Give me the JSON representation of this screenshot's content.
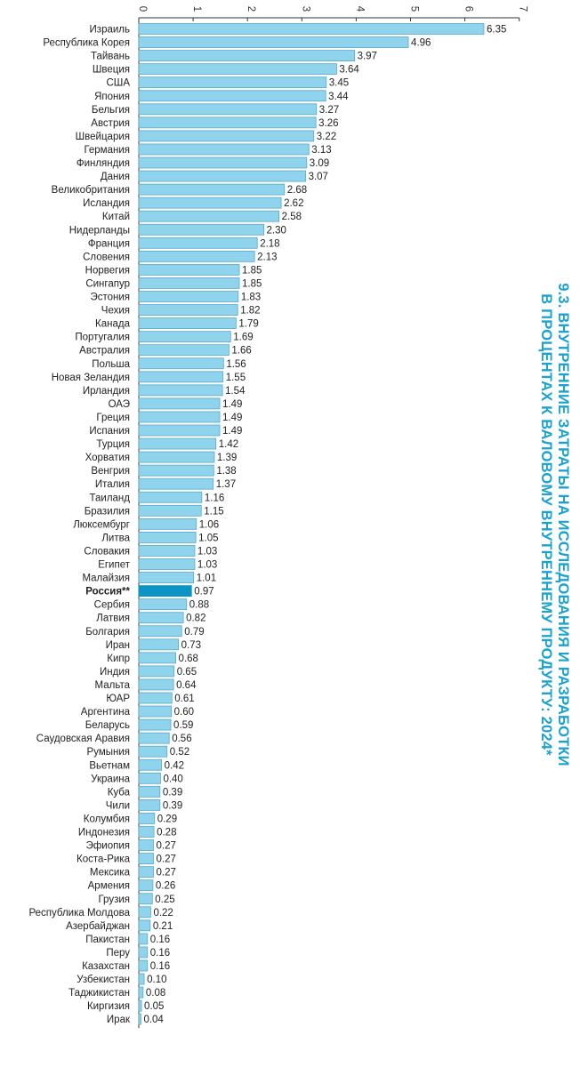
{
  "title": [
    "9.3. ВНУТРЕННИЕ ЗАТРАТЫ НА ИССЛЕДОВАНИЯ И РАЗРАБОТКИ",
    "В ПРОЦЕНТАХ К ВАЛОВОМУ ВНУТРЕННЕМУ ПРОДУКТУ: 2024*"
  ],
  "colors": {
    "bar": "#8fd3ec",
    "bar_stroke": "#5aa9c9",
    "highlight": "#0d94c6",
    "title": "#1aa3cf",
    "axis": "#333333"
  },
  "chart_data": {
    "type": "bar",
    "orientation": "horizontal",
    "title": "9.3. ВНУТРЕННИЕ ЗАТРАТЫ НА ИССЛЕДОВАНИЯ И РАЗРАБОТКИ В ПРОЦЕНТАХ К ВАЛОВОМУ ВНУТРЕННЕМУ ПРОДУКТУ: 2024*",
    "xlim": [
      0,
      7
    ],
    "xticks": [
      0,
      1,
      2,
      3,
      4,
      5,
      6,
      7
    ],
    "xaxis_position": "top",
    "grid": false,
    "highlight": "Россия**",
    "categories": [
      "Израиль",
      "Республика Корея",
      "Тайвань",
      "Швеция",
      "США",
      "Япония",
      "Бельгия",
      "Австрия",
      "Швейцария",
      "Германия",
      "Финляндия",
      "Дания",
      "Великобритания",
      "Исландия",
      "Китай",
      "Нидерланды",
      "Франция",
      "Словения",
      "Норвегия",
      "Сингапур",
      "Эстония",
      "Чехия",
      "Канада",
      "Португалия",
      "Австралия",
      "Польша",
      "Новая Зеландия",
      "Ирландия",
      "ОАЭ",
      "Греция",
      "Испания",
      "Турция",
      "Хорватия",
      "Венгрия",
      "Италия",
      "Таиланд",
      "Бразилия",
      "Люксембург",
      "Литва",
      "Словакия",
      "Египет",
      "Малайзия",
      "Россия**",
      "Сербия",
      "Латвия",
      "Болгария",
      "Иран",
      "Кипр",
      "Индия",
      "Мальта",
      "ЮАР",
      "Аргентина",
      "Беларусь",
      "Саудовская Аравия",
      "Румыния",
      "Вьетнам",
      "Украина",
      "Куба",
      "Чили",
      "Колумбия",
      "Индонезия",
      "Эфиопия",
      "Коста-Рика",
      "Мексика",
      "Армения",
      "Грузия",
      "Республика Молдова",
      "Азербайджан",
      "Пакистан",
      "Перу",
      "Казахстан",
      "Узбекистан",
      "Таджикистан",
      "Киргизия",
      "Ирак"
    ],
    "values": [
      6.35,
      4.96,
      3.97,
      3.64,
      3.45,
      3.44,
      3.27,
      3.26,
      3.22,
      3.13,
      3.09,
      3.07,
      2.68,
      2.62,
      2.58,
      2.3,
      2.18,
      2.13,
      1.85,
      1.85,
      1.83,
      1.82,
      1.79,
      1.69,
      1.66,
      1.56,
      1.55,
      1.54,
      1.49,
      1.49,
      1.49,
      1.42,
      1.39,
      1.38,
      1.37,
      1.16,
      1.15,
      1.06,
      1.05,
      1.03,
      1.03,
      1.01,
      0.97,
      0.88,
      0.82,
      0.79,
      0.73,
      0.68,
      0.65,
      0.64,
      0.61,
      0.6,
      0.59,
      0.56,
      0.52,
      0.42,
      0.4,
      0.39,
      0.39,
      0.29,
      0.28,
      0.27,
      0.27,
      0.27,
      0.26,
      0.25,
      0.22,
      0.21,
      0.16,
      0.16,
      0.16,
      0.1,
      0.08,
      0.05,
      0.04
    ],
    "value_labels": [
      "6.35",
      "4.96",
      "3.97",
      "3.64",
      "3.45",
      "3.44",
      "3.27",
      "3.26",
      "3.22",
      "3.13",
      "3.09",
      "3.07",
      "2.68",
      "2.62",
      "2.58",
      "2.30",
      "2.18",
      "2.13",
      "1.85",
      "1.85",
      "1.83",
      "1.82",
      "1.79",
      "1.69",
      "1.66",
      "1.56",
      "1.55",
      "1.54",
      "1.49",
      "1.49",
      "1.49",
      "1.42",
      "1.39",
      "1.38",
      "1.37",
      "1.16",
      "1.15",
      "1.06",
      "1.05",
      "1.03",
      "1.03",
      "1.01",
      "0.97",
      "0.88",
      "0.82",
      "0.79",
      "0.73",
      "0.68",
      "0.65",
      "0.64",
      "0.61",
      "0.60",
      "0.59",
      "0.56",
      "0.52",
      "0.42",
      "0.40",
      "0.39",
      "0.39",
      "0.29",
      "0.28",
      "0.27",
      "0.27",
      "0.27",
      "0.26",
      "0.25",
      "0.22",
      "0.21",
      "0.16",
      "0.16",
      "0.16",
      "0.10",
      "0.08",
      "0.05",
      "0.04"
    ]
  }
}
